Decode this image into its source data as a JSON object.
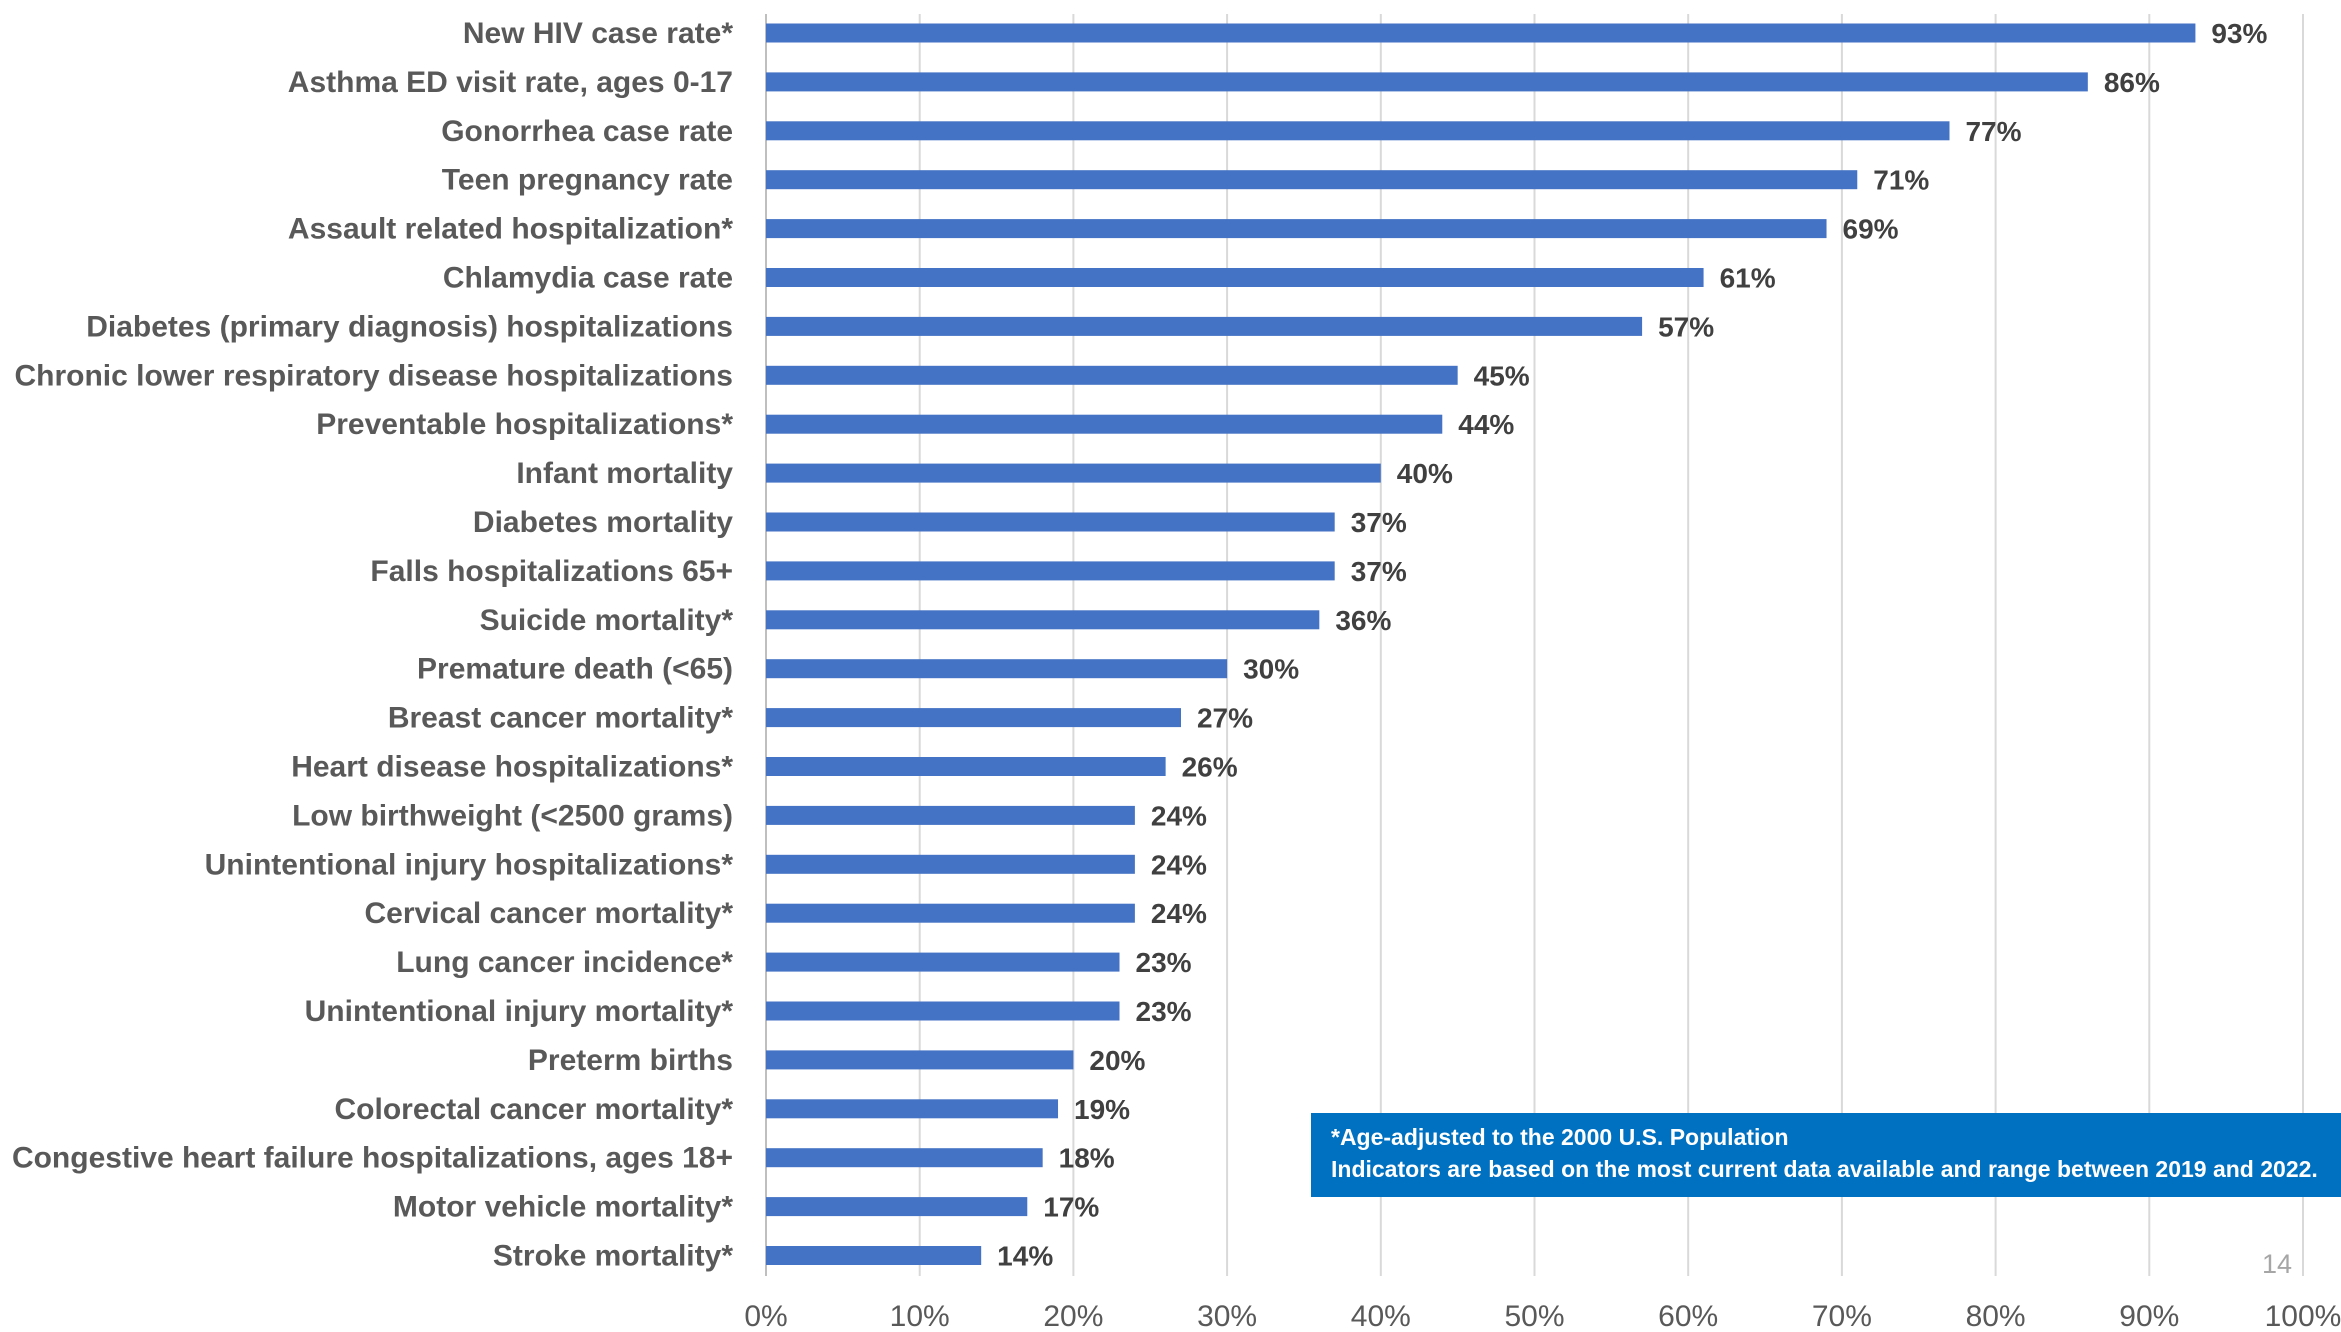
{
  "chart_data": {
    "type": "bar",
    "orientation": "horizontal",
    "categories": [
      "New HIV case rate*",
      "Asthma ED visit rate, ages 0-17",
      "Gonorrhea case rate",
      "Teen pregnancy rate",
      "Assault related hospitalization*",
      "Chlamydia case rate",
      "Diabetes (primary diagnosis) hospitalizations",
      "Chronic lower respiratory disease hospitalizations",
      "Preventable hospitalizations*",
      "Infant mortality",
      "Diabetes mortality",
      "Falls hospitalizations 65+",
      "Suicide mortality*",
      "Premature death (<65)",
      "Breast cancer mortality*",
      "Heart disease hospitalizations*",
      "Low birthweight (<2500 grams)",
      "Unintentional injury hospitalizations*",
      "Cervical cancer mortality*",
      "Lung cancer incidence*",
      "Unintentional injury mortality*",
      "Preterm births",
      "Colorectal cancer mortality*",
      "Congestive heart failure hospitalizations, ages 18+",
      "Motor vehicle mortality*",
      "Stroke mortality*"
    ],
    "values": [
      93,
      86,
      77,
      71,
      69,
      61,
      57,
      45,
      44,
      40,
      37,
      37,
      36,
      30,
      27,
      26,
      24,
      24,
      24,
      23,
      23,
      20,
      19,
      18,
      17,
      14
    ],
    "value_labels": [
      "93%",
      "86%",
      "77%",
      "71%",
      "69%",
      "61%",
      "57%",
      "45%",
      "44%",
      "40%",
      "37%",
      "37%",
      "36%",
      "30%",
      "27%",
      "26%",
      "24%",
      "24%",
      "24%",
      "23%",
      "23%",
      "20%",
      "19%",
      "18%",
      "17%",
      "14%"
    ],
    "x_ticks": [
      "0%",
      "10%",
      "20%",
      "30%",
      "40%",
      "50%",
      "60%",
      "70%",
      "80%",
      "90%",
      "100%"
    ],
    "xlim": [
      0,
      100
    ],
    "grid": true,
    "legend": "none",
    "bar_color": "#4472c4",
    "grid_color": "#d9d9d9"
  },
  "note": {
    "line1": "*Age-adjusted to the 2000 U.S. Population",
    "line2": "Indicators are based on the most current data available and range between 2019 and 2022.",
    "background": "#0070c0"
  },
  "page_number": "14"
}
